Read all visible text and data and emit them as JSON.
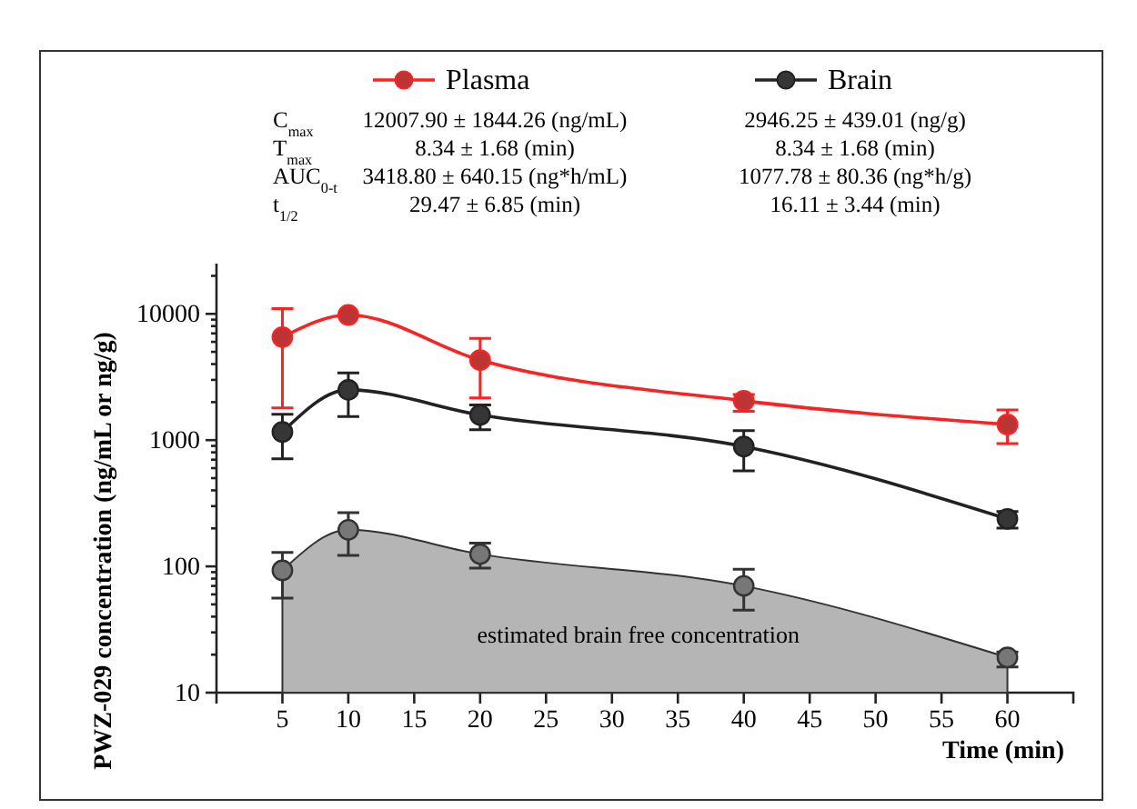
{
  "chart_data": {
    "type": "line",
    "xlabel": "Time (min)",
    "ylabel": "PWZ-029 concentration (ng/mL or ng/g)",
    "x": [
      5,
      10,
      20,
      40,
      60
    ],
    "xlim": [
      0,
      65
    ],
    "xticks": [
      5,
      10,
      15,
      20,
      25,
      30,
      35,
      40,
      45,
      50,
      55,
      60
    ],
    "ylim": [
      10,
      25000
    ],
    "log": true,
    "legend": "top",
    "marker": "circle",
    "line_style": "solid",
    "yticks": [
      10,
      {
        "value": 20,
        "label": null
      },
      {
        "value": 30,
        "label": null
      },
      {
        "value": 40,
        "label": null
      },
      {
        "value": 50,
        "label": null
      },
      {
        "value": 60,
        "label": null
      },
      {
        "value": 70,
        "label": null
      },
      {
        "value": 80,
        "label": null
      },
      {
        "value": 90,
        "label": null
      },
      100,
      {
        "value": 200,
        "label": null
      },
      {
        "value": 300,
        "label": null
      },
      {
        "value": 400,
        "label": null
      },
      {
        "value": 500,
        "label": null
      },
      {
        "value": 600,
        "label": null
      },
      {
        "value": 700,
        "label": null
      },
      {
        "value": 800,
        "label": null
      },
      {
        "value": 900,
        "label": null
      },
      1000,
      {
        "value": 2000,
        "label": null
      },
      {
        "value": 3000,
        "label": null
      },
      {
        "value": 4000,
        "label": null
      },
      {
        "value": 5000,
        "label": null
      },
      {
        "value": 6000,
        "label": null
      },
      {
        "value": 7000,
        "label": null
      },
      {
        "value": 8000,
        "label": null
      },
      {
        "value": 9000,
        "label": null
      },
      10000,
      {
        "value": 20000,
        "label": null
      }
    ],
    "series": [
      {
        "type": "area",
        "color": "#b5b5b5",
        "values": [
          93,
          195,
          125,
          70,
          19
        ],
        "errors": [
          [
            56,
            129
          ],
          [
            122,
            266
          ],
          [
            97,
            153
          ],
          [
            45,
            95
          ],
          [
            16,
            21
          ]
        ]
      },
      {
        "name": "Plasma",
        "color": "#ff2020",
        "values": [
          6550,
          9800,
          4300,
          2050,
          1330
        ],
        "errors": [
          [
            1800,
            11000
          ],
          null,
          [
            2160,
            6400
          ],
          [
            1690,
            2300
          ],
          [
            940,
            1730
          ]
        ]
      },
      {
        "name": "Brain",
        "color": "#222222",
        "values": [
          1160,
          2500,
          1580,
          890,
          238
        ],
        "errors": [
          [
            710,
            1600
          ],
          [
            1540,
            3400
          ],
          [
            1210,
            1900
          ],
          [
            570,
            1190
          ],
          [
            201,
            272
          ]
        ]
      }
    ],
    "annotations": [
      "C$_{max}$",
      "T$_{max}$",
      "AUC$_{0-t}$",
      "t$_{1/2}$",
      "12007.90 ± 1844.26 (ng/mL)",
      "8.34 ± 1.68 (min)",
      "3418.80 ± 640.15 (ng*h/mL)",
      "29.47 ± 6.85 (min)",
      "2946.25 ± 439.01 (ng/g)",
      "8.34 ± 1.68 (min)",
      "1077.78 ± 80.36 (ng*h/g)",
      "16.11 ± 3.44 (min)",
      "estimated brain free concentration"
    ]
  }
}
